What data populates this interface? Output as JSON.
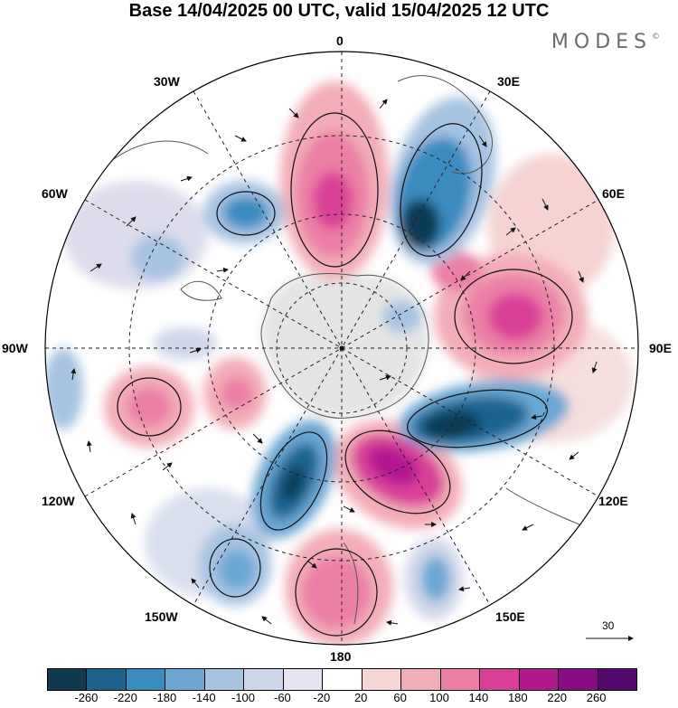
{
  "title": "Base 14/04/2025 00 UTC, valid 15/04/2025 12 UTC",
  "brand": {
    "name": "MODES",
    "mark": "©"
  },
  "longitude_labels": {
    "lon_0": "0",
    "lon_30e": "30E",
    "lon_60e": "60E",
    "lon_90e": "90E",
    "lon_120e": "120E",
    "lon_150e": "150E",
    "lon_180": "180",
    "lon_150w": "150W",
    "lon_120w": "120W",
    "lon_90w": "90W",
    "lon_60w": "60W",
    "lon_30w": "30W"
  },
  "reference_vector": {
    "label": "30"
  },
  "colorbar": {
    "colors": [
      "#0f3a52",
      "#1c6490",
      "#3a8bbf",
      "#6ba7d2",
      "#a6c3e2",
      "#cfd6ea",
      "#e8e5f2",
      "#ffffff",
      "#f8d6d8",
      "#f2adb8",
      "#ec7fa6",
      "#d83f98",
      "#b21890",
      "#870c86",
      "#56086f"
    ],
    "ticks": [
      "-260",
      "-220",
      "-180",
      "-140",
      "-100",
      "-60",
      "-20",
      "20",
      "60",
      "100",
      "140",
      "180",
      "220",
      "260"
    ]
  },
  "map_colors": {
    "land": "#d9d9d9",
    "coast": "#555555",
    "graticule": "#222222",
    "vector": "#111111"
  }
}
